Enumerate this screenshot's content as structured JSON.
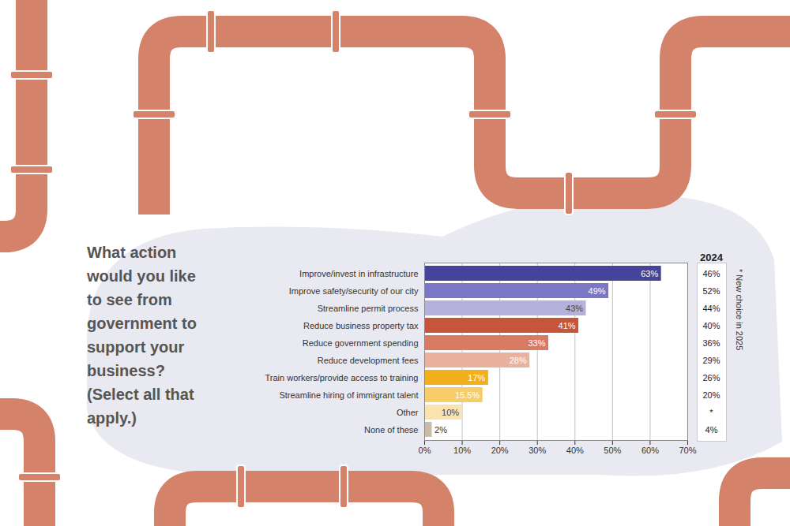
{
  "chart_data": {
    "type": "bar",
    "orientation": "horizontal",
    "title": "What action would you like to see from government to support your business? (Select all that apply.)",
    "categories": [
      "Improve/invest in infrastructure",
      "Improve safety/security of our city",
      "Streamline permit process",
      "Reduce business property tax",
      "Reduce government spending",
      "Reduce development fees",
      "Train workers/provide access to training",
      "Streamline hiring of immigrant talent",
      "Other",
      "None of these"
    ],
    "values": [
      63,
      49,
      43,
      41,
      33,
      28,
      17,
      15.5,
      10,
      2
    ],
    "value_labels": [
      "63%",
      "49%",
      "43%",
      "41%",
      "33%",
      "28%",
      "17%",
      "15.5%",
      "10%",
      "2%"
    ],
    "colors": [
      "#46449a",
      "#7a77c4",
      "#b4b2dc",
      "#c6553b",
      "#d97a62",
      "#e8b29f",
      "#f2b01c",
      "#f7cd6a",
      "#fbe3b0",
      "#cbbba9"
    ],
    "data_labels": true,
    "xlim": [
      0,
      70
    ],
    "xticks": [
      {
        "value": 0,
        "label": "0%"
      },
      {
        "value": 10,
        "label": "10%"
      },
      {
        "value": 20,
        "label": "20%"
      },
      {
        "value": 30,
        "label": "30%"
      },
      {
        "value": 40,
        "label": "40%"
      },
      {
        "value": 50,
        "label": "50%"
      },
      {
        "value": 60,
        "label": "60%"
      },
      {
        "value": 70,
        "label": "70%"
      }
    ],
    "grid": true,
    "comparison": {
      "name": "2024",
      "values": [
        46,
        52,
        44,
        40,
        36,
        29,
        26,
        20,
        null,
        4
      ],
      "value_labels": [
        "46%",
        "52%",
        "44%",
        "40%",
        "36%",
        "29%",
        "26%",
        "20%",
        "*",
        "4%"
      ]
    },
    "note": "* New choice in 2025"
  }
}
